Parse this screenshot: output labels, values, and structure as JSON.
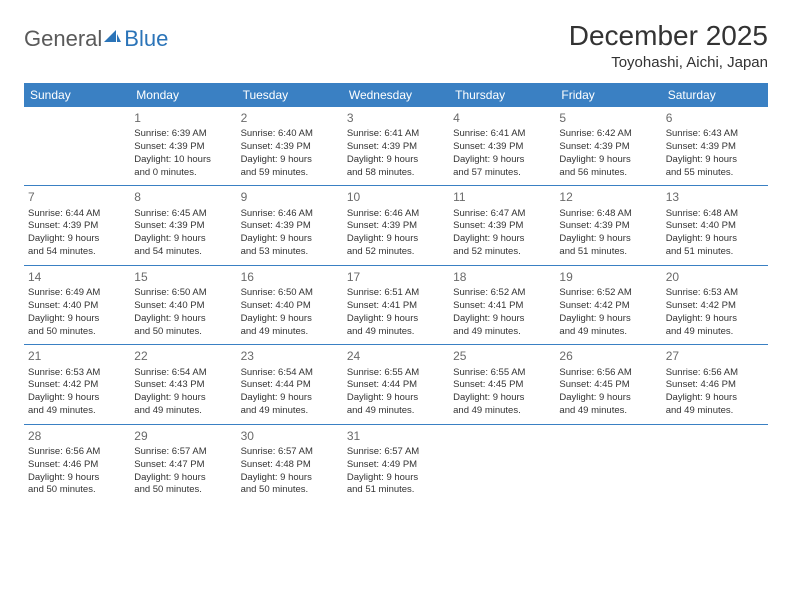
{
  "logo": {
    "part1": "General",
    "part2": "Blue"
  },
  "title": "December 2025",
  "subtitle": "Toyohashi, Aichi, Japan",
  "header_bg": "#3a80c3",
  "header_fg": "#ffffff",
  "divider_color": "#3a80c3",
  "day_headers": [
    "Sunday",
    "Monday",
    "Tuesday",
    "Wednesday",
    "Thursday",
    "Friday",
    "Saturday"
  ],
  "weeks": [
    [
      null,
      {
        "n": "1",
        "sr": "Sunrise: 6:39 AM",
        "ss": "Sunset: 4:39 PM",
        "d1": "Daylight: 10 hours",
        "d2": "and 0 minutes."
      },
      {
        "n": "2",
        "sr": "Sunrise: 6:40 AM",
        "ss": "Sunset: 4:39 PM",
        "d1": "Daylight: 9 hours",
        "d2": "and 59 minutes."
      },
      {
        "n": "3",
        "sr": "Sunrise: 6:41 AM",
        "ss": "Sunset: 4:39 PM",
        "d1": "Daylight: 9 hours",
        "d2": "and 58 minutes."
      },
      {
        "n": "4",
        "sr": "Sunrise: 6:41 AM",
        "ss": "Sunset: 4:39 PM",
        "d1": "Daylight: 9 hours",
        "d2": "and 57 minutes."
      },
      {
        "n": "5",
        "sr": "Sunrise: 6:42 AM",
        "ss": "Sunset: 4:39 PM",
        "d1": "Daylight: 9 hours",
        "d2": "and 56 minutes."
      },
      {
        "n": "6",
        "sr": "Sunrise: 6:43 AM",
        "ss": "Sunset: 4:39 PM",
        "d1": "Daylight: 9 hours",
        "d2": "and 55 minutes."
      }
    ],
    [
      {
        "n": "7",
        "sr": "Sunrise: 6:44 AM",
        "ss": "Sunset: 4:39 PM",
        "d1": "Daylight: 9 hours",
        "d2": "and 54 minutes."
      },
      {
        "n": "8",
        "sr": "Sunrise: 6:45 AM",
        "ss": "Sunset: 4:39 PM",
        "d1": "Daylight: 9 hours",
        "d2": "and 54 minutes."
      },
      {
        "n": "9",
        "sr": "Sunrise: 6:46 AM",
        "ss": "Sunset: 4:39 PM",
        "d1": "Daylight: 9 hours",
        "d2": "and 53 minutes."
      },
      {
        "n": "10",
        "sr": "Sunrise: 6:46 AM",
        "ss": "Sunset: 4:39 PM",
        "d1": "Daylight: 9 hours",
        "d2": "and 52 minutes."
      },
      {
        "n": "11",
        "sr": "Sunrise: 6:47 AM",
        "ss": "Sunset: 4:39 PM",
        "d1": "Daylight: 9 hours",
        "d2": "and 52 minutes."
      },
      {
        "n": "12",
        "sr": "Sunrise: 6:48 AM",
        "ss": "Sunset: 4:39 PM",
        "d1": "Daylight: 9 hours",
        "d2": "and 51 minutes."
      },
      {
        "n": "13",
        "sr": "Sunrise: 6:48 AM",
        "ss": "Sunset: 4:40 PM",
        "d1": "Daylight: 9 hours",
        "d2": "and 51 minutes."
      }
    ],
    [
      {
        "n": "14",
        "sr": "Sunrise: 6:49 AM",
        "ss": "Sunset: 4:40 PM",
        "d1": "Daylight: 9 hours",
        "d2": "and 50 minutes."
      },
      {
        "n": "15",
        "sr": "Sunrise: 6:50 AM",
        "ss": "Sunset: 4:40 PM",
        "d1": "Daylight: 9 hours",
        "d2": "and 50 minutes."
      },
      {
        "n": "16",
        "sr": "Sunrise: 6:50 AM",
        "ss": "Sunset: 4:40 PM",
        "d1": "Daylight: 9 hours",
        "d2": "and 49 minutes."
      },
      {
        "n": "17",
        "sr": "Sunrise: 6:51 AM",
        "ss": "Sunset: 4:41 PM",
        "d1": "Daylight: 9 hours",
        "d2": "and 49 minutes."
      },
      {
        "n": "18",
        "sr": "Sunrise: 6:52 AM",
        "ss": "Sunset: 4:41 PM",
        "d1": "Daylight: 9 hours",
        "d2": "and 49 minutes."
      },
      {
        "n": "19",
        "sr": "Sunrise: 6:52 AM",
        "ss": "Sunset: 4:42 PM",
        "d1": "Daylight: 9 hours",
        "d2": "and 49 minutes."
      },
      {
        "n": "20",
        "sr": "Sunrise: 6:53 AM",
        "ss": "Sunset: 4:42 PM",
        "d1": "Daylight: 9 hours",
        "d2": "and 49 minutes."
      }
    ],
    [
      {
        "n": "21",
        "sr": "Sunrise: 6:53 AM",
        "ss": "Sunset: 4:42 PM",
        "d1": "Daylight: 9 hours",
        "d2": "and 49 minutes."
      },
      {
        "n": "22",
        "sr": "Sunrise: 6:54 AM",
        "ss": "Sunset: 4:43 PM",
        "d1": "Daylight: 9 hours",
        "d2": "and 49 minutes."
      },
      {
        "n": "23",
        "sr": "Sunrise: 6:54 AM",
        "ss": "Sunset: 4:44 PM",
        "d1": "Daylight: 9 hours",
        "d2": "and 49 minutes."
      },
      {
        "n": "24",
        "sr": "Sunrise: 6:55 AM",
        "ss": "Sunset: 4:44 PM",
        "d1": "Daylight: 9 hours",
        "d2": "and 49 minutes."
      },
      {
        "n": "25",
        "sr": "Sunrise: 6:55 AM",
        "ss": "Sunset: 4:45 PM",
        "d1": "Daylight: 9 hours",
        "d2": "and 49 minutes."
      },
      {
        "n": "26",
        "sr": "Sunrise: 6:56 AM",
        "ss": "Sunset: 4:45 PM",
        "d1": "Daylight: 9 hours",
        "d2": "and 49 minutes."
      },
      {
        "n": "27",
        "sr": "Sunrise: 6:56 AM",
        "ss": "Sunset: 4:46 PM",
        "d1": "Daylight: 9 hours",
        "d2": "and 49 minutes."
      }
    ],
    [
      {
        "n": "28",
        "sr": "Sunrise: 6:56 AM",
        "ss": "Sunset: 4:46 PM",
        "d1": "Daylight: 9 hours",
        "d2": "and 50 minutes."
      },
      {
        "n": "29",
        "sr": "Sunrise: 6:57 AM",
        "ss": "Sunset: 4:47 PM",
        "d1": "Daylight: 9 hours",
        "d2": "and 50 minutes."
      },
      {
        "n": "30",
        "sr": "Sunrise: 6:57 AM",
        "ss": "Sunset: 4:48 PM",
        "d1": "Daylight: 9 hours",
        "d2": "and 50 minutes."
      },
      {
        "n": "31",
        "sr": "Sunrise: 6:57 AM",
        "ss": "Sunset: 4:49 PM",
        "d1": "Daylight: 9 hours",
        "d2": "and 51 minutes."
      },
      null,
      null,
      null
    ]
  ]
}
